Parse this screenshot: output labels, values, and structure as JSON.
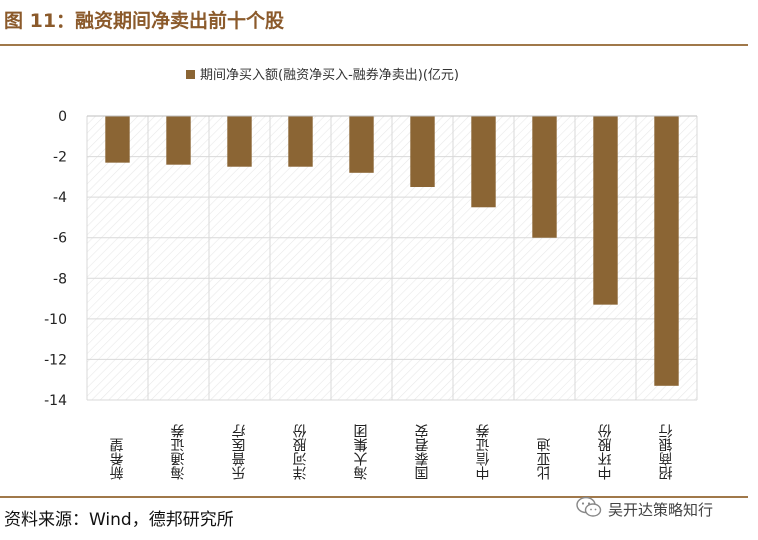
{
  "figure": {
    "title": "图 11：融资期间净卖出前十个股",
    "source": "资料来源：Wind，德邦研究所",
    "watermark": "吴开达策略知行"
  },
  "colors": {
    "bar": "#8B6534",
    "accent": "#A0784A",
    "grid": "#D9D9D9",
    "hatch": "#E6E6E6"
  },
  "chart_data": {
    "type": "bar",
    "title": "",
    "legend": {
      "label": "期间净买入额(融资净买入-融券净卖出)(亿元)",
      "position": "top-center"
    },
    "categories": [
      "新希望",
      "海通证券",
      "乐普医疗",
      "洋河股份",
      "海大集团",
      "国泰君安",
      "中信证券",
      "比亚迪",
      "中环股份",
      "招商银行"
    ],
    "series": [
      {
        "name": "期间净买入额(融资净买入-融券净卖出)(亿元)",
        "values": [
          -2.3,
          -2.4,
          -2.5,
          -2.5,
          -2.8,
          -3.5,
          -4.5,
          -6.0,
          -9.3,
          -13.3
        ]
      }
    ],
    "ylim": [
      -14,
      0
    ],
    "yticks": [
      0,
      -2,
      -4,
      -6,
      -8,
      -10,
      -12,
      -14
    ],
    "grid": true,
    "xlabel": "",
    "ylabel": ""
  }
}
